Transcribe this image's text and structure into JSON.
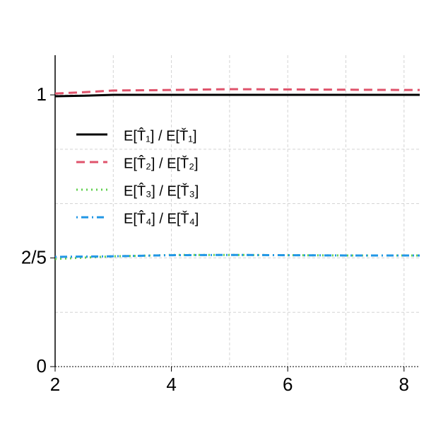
{
  "chart_data": {
    "type": "line",
    "x": [
      2,
      2.5,
      3,
      3.5,
      4,
      5,
      6,
      7,
      8,
      8.27
    ],
    "series": [
      {
        "name": "E[T̂₁] / E[Ť₁]",
        "color": "#000000",
        "dash": "solid",
        "values": [
          0.995,
          0.997,
          1,
          1,
          1,
          1,
          1,
          1,
          1,
          1
        ]
      },
      {
        "name": "E[T̂₂] / E[Ť₂]",
        "color": "#df536b",
        "dash": "dashed",
        "values": [
          1.005,
          1.01,
          1.016,
          1.017,
          1.018,
          1.021,
          1.02,
          1.019,
          1.018,
          1.018
        ]
      },
      {
        "name": "E[T̂₃] / E[Ť₃]",
        "color": "#61d04f",
        "dash": "dotted",
        "values": [
          0.396,
          0.401,
          0.406,
          0.408,
          0.411,
          0.411,
          0.41,
          0.409,
          0.409,
          0.409
        ]
      },
      {
        "name": "E[T̂₄] / E[Ť₄]",
        "color": "#2297e6",
        "dash": "dotdash",
        "values": [
          0.404,
          0.405,
          0.406,
          0.408,
          0.41,
          0.411,
          0.41,
          0.409,
          0.409,
          0.409
        ]
      }
    ],
    "xlim": [
      2,
      8.27
    ],
    "ylim": [
      0,
      1.146
    ],
    "xticks": [
      2,
      4,
      6,
      8
    ],
    "xgrid": [
      2,
      3,
      4,
      5,
      6,
      7,
      8
    ],
    "yticks": [
      0,
      {
        "value": 0.4,
        "label": "2/5"
      },
      1
    ],
    "ygrid": [
      0.2,
      0.4,
      0.6,
      0.8,
      1
    ],
    "grid": true,
    "legend": "upper left"
  }
}
